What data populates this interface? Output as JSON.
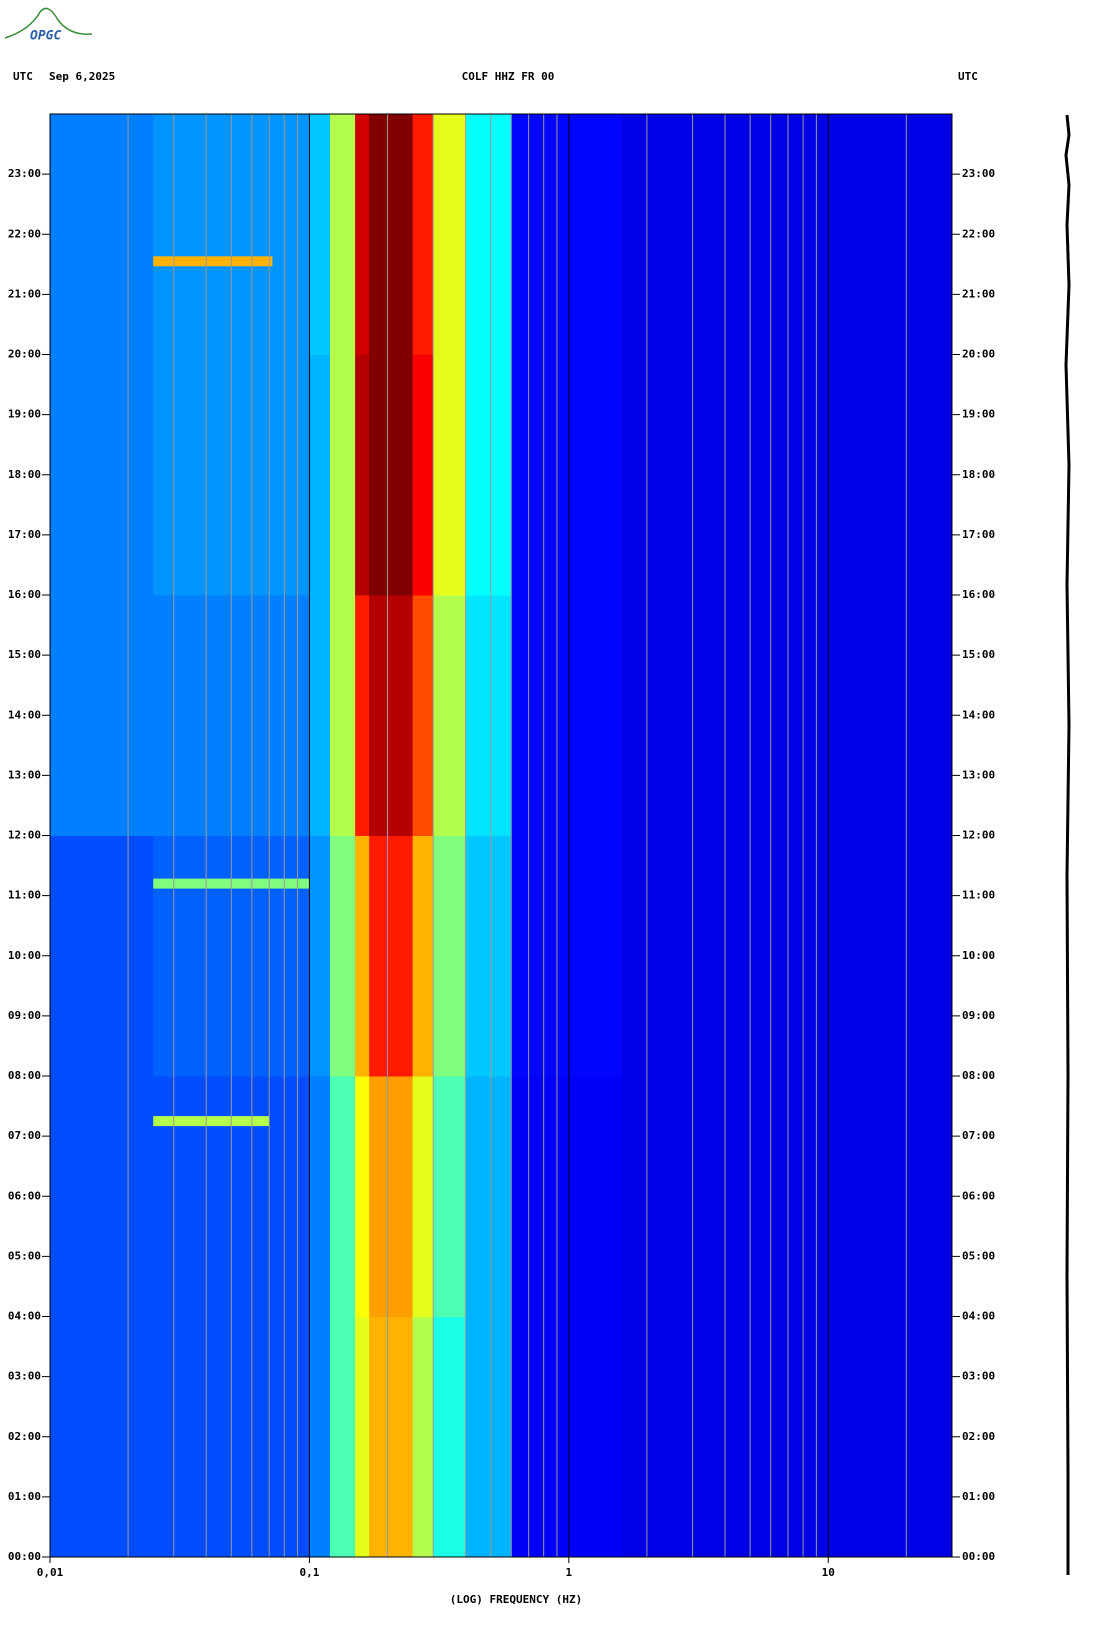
{
  "chart_data": {
    "type": "spectrogram",
    "logo": "OPGC",
    "left_header": "UTC",
    "date": "Sep 6,2025",
    "title": "COLF HHZ FR 00",
    "right_header": "UTC",
    "xlabel": "(LOG) FREQUENCY (HZ)",
    "xscale": "log",
    "xlim": [
      0.01,
      30
    ],
    "xticks": [
      {
        "value": 0.01,
        "label": "0,01"
      },
      {
        "value": 0.1,
        "label": "0,1"
      },
      1,
      10
    ],
    "x_gridlines": [
      0.02,
      0.03,
      0.04,
      0.05,
      0.06,
      0.07,
      0.08,
      0.09,
      0.1,
      0.2,
      0.3,
      0.4,
      0.5,
      0.6,
      0.7,
      0.8,
      0.9,
      1,
      2,
      3,
      4,
      5,
      6,
      7,
      8,
      9,
      10,
      20
    ],
    "ylim": [
      0,
      24
    ],
    "yticks": [
      {
        "value": 0,
        "label": "00:00"
      },
      {
        "value": 1,
        "label": "01:00"
      },
      {
        "value": 2,
        "label": "02:00"
      },
      {
        "value": 3,
        "label": "03:00"
      },
      {
        "value": 4,
        "label": "04:00"
      },
      {
        "value": 5,
        "label": "05:00"
      },
      {
        "value": 6,
        "label": "06:00"
      },
      {
        "value": 7,
        "label": "07:00"
      },
      {
        "value": 8,
        "label": "08:00"
      },
      {
        "value": 9,
        "label": "09:00"
      },
      {
        "value": 10,
        "label": "10:00"
      },
      {
        "value": 11,
        "label": "11:00"
      },
      {
        "value": 12,
        "label": "12:00"
      },
      {
        "value": 13,
        "label": "13:00"
      },
      {
        "value": 14,
        "label": "14:00"
      },
      {
        "value": 15,
        "label": "15:00"
      },
      {
        "value": 16,
        "label": "16:00"
      },
      {
        "value": 17,
        "label": "17:00"
      },
      {
        "value": 18,
        "label": "18:00"
      },
      {
        "value": 19,
        "label": "19:00"
      },
      {
        "value": 20,
        "label": "20:00"
      },
      {
        "value": 21,
        "label": "21:00"
      },
      {
        "value": 22,
        "label": "22:00"
      },
      {
        "value": 23,
        "label": "23:00"
      }
    ],
    "freq_edges": [
      0.01,
      0.025,
      0.1,
      0.12,
      0.15,
      0.17,
      0.25,
      0.3,
      0.4,
      0.6,
      1.6,
      30
    ],
    "time_edges": [
      0,
      4,
      8,
      12,
      16,
      20,
      24
    ],
    "z": [
      [
        0.2,
        0.2,
        0.25,
        0.45,
        0.6,
        0.7,
        0.55,
        0.4,
        0.3,
        0.12,
        0.1
      ],
      [
        0.2,
        0.2,
        0.25,
        0.45,
        0.62,
        0.72,
        0.6,
        0.45,
        0.3,
        0.12,
        0.1
      ],
      [
        0.2,
        0.22,
        0.27,
        0.5,
        0.7,
        0.85,
        0.7,
        0.5,
        0.32,
        0.13,
        0.1
      ],
      [
        0.25,
        0.25,
        0.3,
        0.55,
        0.85,
        0.95,
        0.8,
        0.55,
        0.35,
        0.13,
        0.1
      ],
      [
        0.25,
        0.27,
        0.3,
        0.55,
        0.95,
        1.0,
        0.88,
        0.6,
        0.38,
        0.13,
        0.1
      ],
      [
        0.25,
        0.27,
        0.32,
        0.55,
        0.92,
        1.0,
        0.85,
        0.6,
        0.38,
        0.13,
        0.1
      ]
    ],
    "events": [
      {
        "t": 21.55,
        "fmin": 0.025,
        "fmax": 0.072,
        "power": 0.7
      },
      {
        "t": 11.2,
        "fmin": 0.025,
        "fmax": 0.1,
        "power": 0.5
      },
      {
        "t": 7.25,
        "fmin": 0.025,
        "fmax": 0.07,
        "power": 0.55
      }
    ]
  }
}
